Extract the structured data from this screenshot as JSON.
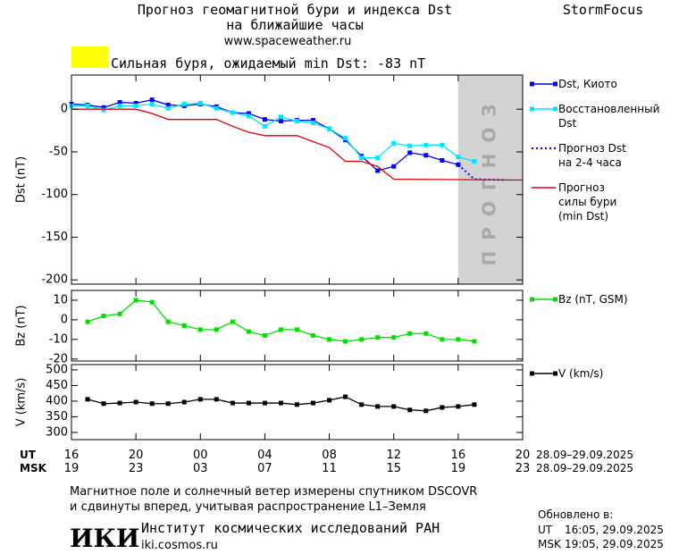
{
  "header": {
    "title": "Прогноз геомагнитной бури и индекса Dst",
    "subtitle": "на ближайшие часы",
    "url": "www.spaceweather.ru",
    "brand": "StormFocus"
  },
  "alert": {
    "color": "#ffff00",
    "text": "Сильная буря, ожидаемый min Dst: -83 nT"
  },
  "xaxis": {
    "xlim": [
      0,
      28
    ],
    "ut_label": "UT",
    "msk_label": "MSK",
    "date_range_ut": "28.09–29.09.2025",
    "date_range_msk": "28.09–29.09.2025",
    "xticks": [
      {
        "value": 0,
        "label": "16"
      },
      {
        "value": 4,
        "label": "20"
      },
      {
        "value": 8,
        "label": "00"
      },
      {
        "value": 12,
        "label": "04"
      },
      {
        "value": 16,
        "label": "08"
      },
      {
        "value": 20,
        "label": "12"
      },
      {
        "value": 24,
        "label": "16"
      },
      {
        "value": 28,
        "label": "20"
      }
    ],
    "msk_labels": [
      "19",
      "23",
      "03",
      "07",
      "11",
      "15",
      "19",
      "23"
    ]
  },
  "chart_data": [
    {
      "type": "line",
      "ylabel": "Dst (nT)",
      "ylim": [
        -205,
        40
      ],
      "yticks": [
        0,
        -50,
        -100,
        -150,
        -200
      ],
      "shade": {
        "x": [
          24,
          28
        ],
        "color": "#d3d3d3",
        "label": "ПРОГНОЗ"
      },
      "series": [
        {
          "name": "Dst, Киото",
          "color": "#0000ff",
          "marker": "square",
          "linestyle": "solid",
          "x": [
            0,
            1,
            2,
            3,
            4,
            5,
            6,
            7,
            8,
            9,
            10,
            11,
            12,
            13,
            14,
            15,
            16,
            17,
            18,
            19,
            20,
            21,
            22,
            23,
            24
          ],
          "values": [
            6,
            5,
            2,
            8,
            7,
            11,
            5,
            4,
            6,
            3,
            -4,
            -5,
            -12,
            -14,
            -13,
            -13,
            -23,
            -36,
            -55,
            -72,
            -67,
            -51,
            -54,
            -60,
            -65
          ]
        },
        {
          "name": "Восстановленный\nDst",
          "color": "#00e5ff",
          "marker": "square",
          "linestyle": "solid",
          "x": [
            0,
            1,
            2,
            3,
            4,
            5,
            6,
            7,
            8,
            9,
            10,
            11,
            12,
            13,
            14,
            15,
            16,
            17,
            18,
            19,
            20,
            21,
            22,
            23,
            24,
            25
          ],
          "values": [
            4,
            4,
            -1,
            4,
            4,
            6,
            1,
            6,
            7,
            1,
            -4,
            -8,
            -20,
            -9,
            -14,
            -16,
            -23,
            -34,
            -57,
            -57,
            -40,
            -43,
            -42,
            -42,
            -56,
            -61
          ]
        },
        {
          "name": "Прогноз Dst\nна 2-4 часа",
          "color": "#0000ff",
          "marker": "none",
          "linestyle": "dotted",
          "x": [
            24,
            25,
            27
          ],
          "values": [
            -65,
            -82,
            -83
          ]
        },
        {
          "name": "Прогноз\nсилы бури\n(min Dst)",
          "color": "#e00000",
          "marker": "none",
          "linestyle": "solid",
          "x": [
            0,
            4,
            5,
            6,
            8,
            9,
            10,
            11,
            12,
            13,
            14,
            15,
            16,
            17,
            18,
            19,
            20,
            28
          ],
          "values": [
            0,
            0,
            -5,
            -12,
            -12,
            -12,
            -20,
            -27,
            -31,
            -31,
            -31,
            -38,
            -45,
            -61,
            -61,
            -67,
            -82,
            -83
          ]
        }
      ]
    },
    {
      "type": "line",
      "ylabel": "Bz (nT)",
      "ylim": [
        -21,
        15
      ],
      "yticks": [
        10,
        0,
        -10,
        -20
      ],
      "series": [
        {
          "name": "Bz (nT, GSM)",
          "color": "#00e000",
          "marker": "square",
          "linestyle": "solid",
          "x": [
            1,
            2,
            3,
            4,
            5,
            6,
            7,
            8,
            9,
            10,
            11,
            12,
            13,
            14,
            15,
            16,
            17,
            18,
            19,
            20,
            21,
            22,
            23,
            24,
            25
          ],
          "values": [
            -1,
            2,
            3,
            10,
            9,
            -1,
            -3,
            -5,
            -5,
            -1,
            -6,
            -8,
            -5,
            -5,
            -8,
            -10,
            -11,
            -10,
            -9,
            -9,
            -7,
            -7,
            -10,
            -10,
            -11
          ]
        }
      ]
    },
    {
      "type": "line",
      "ylabel": "V (km/s)",
      "ylim": [
        277,
        517
      ],
      "yticks": [
        500,
        450,
        400,
        350,
        300
      ],
      "series": [
        {
          "name": "V (km/s)",
          "color": "#000000",
          "marker": "square",
          "linestyle": "solid",
          "x": [
            1,
            2,
            3,
            4,
            5,
            6,
            7,
            8,
            9,
            10,
            11,
            12,
            13,
            14,
            15,
            16,
            17,
            18,
            19,
            20,
            21,
            22,
            23,
            24,
            25
          ],
          "values": [
            406,
            392,
            394,
            397,
            392,
            392,
            397,
            406,
            406,
            394,
            394,
            394,
            394,
            389,
            394,
            403,
            414,
            389,
            383,
            383,
            372,
            369,
            380,
            383,
            389
          ]
        }
      ]
    }
  ],
  "footer": {
    "note": [
      "Магнитное поле и солнечный ветер измерены спутником DSCOVR",
      "и сдвинуты вперед, учитывая распространение L1–Земля"
    ],
    "logo": "ИКИ",
    "institute": "Институт космических исследований РАН",
    "site": "iki.cosmos.ru",
    "updated_label": "Обновлено в:",
    "updated": [
      {
        "zone": "UT",
        "time": "16:05, 29.09.2025"
      },
      {
        "zone": "MSK",
        "time": "19:05, 29.09.2025"
      }
    ]
  }
}
